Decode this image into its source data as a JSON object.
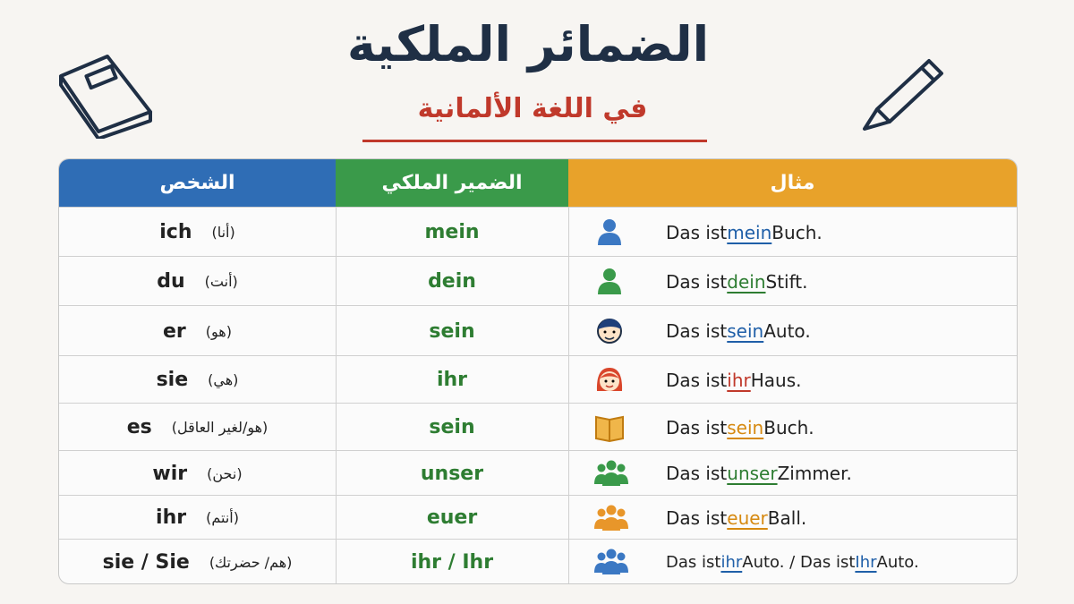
{
  "title": "الضمائر الملكية",
  "subtitle": "في اللغة الألمانية",
  "table": {
    "headers": [
      "الشخص",
      "الضمير الملكي",
      "مثال"
    ],
    "rows": [
      {
        "person": "ich",
        "arabic": "(أنا)",
        "possessive": "mein",
        "color": "#1f5fa8",
        "example": [
          "Das ist",
          "mein",
          "Buch."
        ]
      },
      {
        "person": "du",
        "arabic": "(أنت)",
        "possessive": "dein",
        "color": "#2e7d32",
        "example": [
          "Das ist",
          "dein",
          "Stift."
        ]
      },
      {
        "person": "er",
        "arabic": "(هو)",
        "possessive": "sein",
        "color": "#1f5fa8",
        "example": [
          "Das ist",
          "sein",
          "Auto."
        ]
      },
      {
        "person": "sie",
        "arabic": "(هي)",
        "possessive": "ihr",
        "color": "#c0392b",
        "example": [
          "Das ist",
          "ihr",
          "Haus."
        ]
      },
      {
        "person": "es",
        "arabic": "(هو/لغير العاقل)",
        "possessive": "sein",
        "color": "#d68910",
        "example": [
          "Das ist",
          "sein",
          "Buch."
        ]
      },
      {
        "person": "wir",
        "arabic": "(نحن)",
        "possessive": "unser",
        "color": "#2e7d32",
        "example": [
          "Das ist",
          "unser",
          "Zimmer."
        ]
      },
      {
        "person": "ihr",
        "arabic": "(أنتم)",
        "possessive": "euer",
        "color": "#d68910",
        "example": [
          "Das ist",
          "euer",
          "Ball."
        ]
      },
      {
        "person": "sie / Sie",
        "arabic": "(هم/ حضرتك)",
        "possessive": "ihr / Ihr",
        "color": "#1f5fa8",
        "example": [
          "Das ist",
          "ihr",
          "Auto. / Das ist",
          "Ihr",
          "Auto."
        ]
      }
    ]
  }
}
